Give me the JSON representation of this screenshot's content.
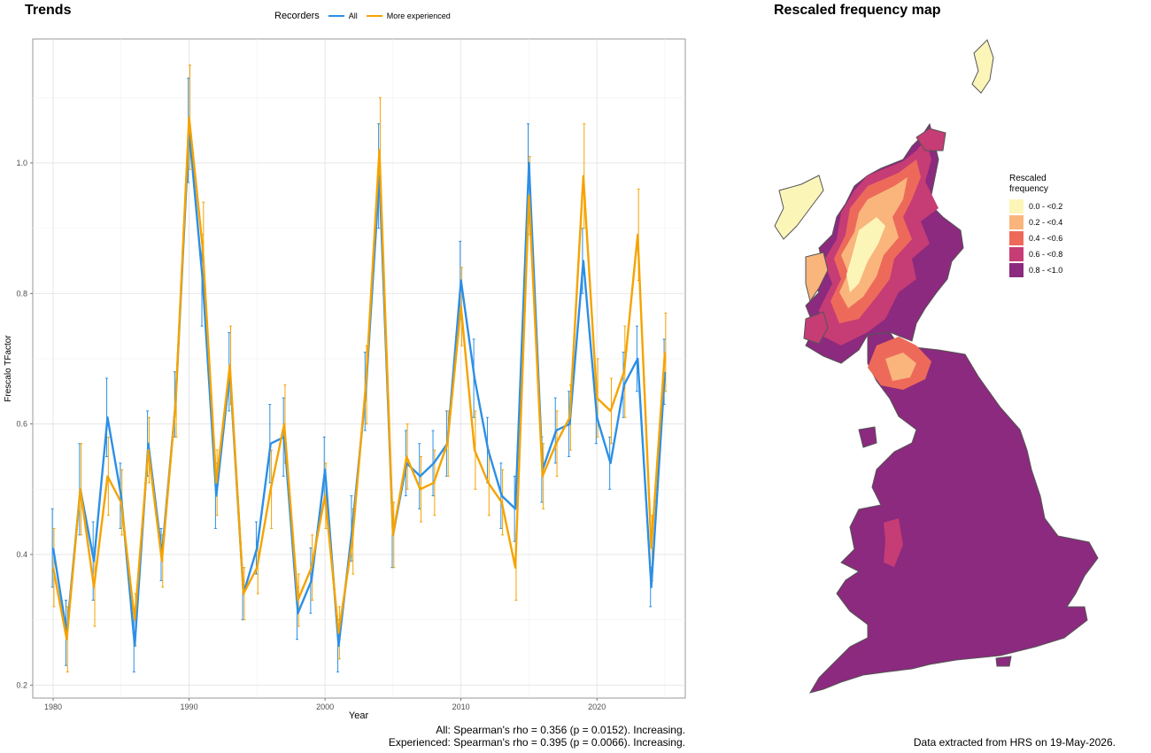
{
  "titles": {
    "trends": "Trends",
    "map": "Rescaled frequency map"
  },
  "legend": {
    "title": "Recorders",
    "items": [
      {
        "name": "All",
        "color": "#2b8fe6"
      },
      {
        "name": "More experienced",
        "color": "#f5a300"
      }
    ]
  },
  "footer": {
    "stats_all": "All: Spearman's rho = 0.356 (p = 0.0152). Increasing.",
    "stats_exp": "Experienced: Spearman's rho = 0.395 (p = 0.0066). Increasing.",
    "extracted": "Data extracted from HRS on 19-May-2026."
  },
  "map_legend": {
    "title_line1": "Rescaled",
    "title_line2": "frequency",
    "classes": [
      {
        "label": "0.0 - <0.2",
        "color": "#fcf5b8"
      },
      {
        "label": "0.2 - <0.4",
        "color": "#f9b57c"
      },
      {
        "label": "0.4 - <0.6",
        "color": "#ed6a5a"
      },
      {
        "label": "0.6 - <0.8",
        "color": "#c63c75"
      },
      {
        "label": "0.8 - <1.0",
        "color": "#8b2a7e"
      }
    ]
  },
  "chart_data": {
    "type": "line",
    "title": "Trends",
    "xlabel": "Year",
    "ylabel": "Frescalo TFactor",
    "xlim": [
      1978.5,
      2026.5
    ],
    "ylim": [
      0.18,
      1.19
    ],
    "xticks": [
      1980,
      1990,
      2000,
      2010,
      2020
    ],
    "yticks": [
      0.2,
      0.4,
      0.6,
      0.8,
      1.0
    ],
    "grid": true,
    "legend_position": "top",
    "x": [
      1980,
      1981,
      1982,
      1983,
      1984,
      1985,
      1986,
      1987,
      1988,
      1989,
      1990,
      1991,
      1992,
      1993,
      1994,
      1995,
      1996,
      1997,
      1998,
      1999,
      2000,
      2001,
      2002,
      2003,
      2004,
      2005,
      2006,
      2007,
      2008,
      2009,
      2010,
      2011,
      2012,
      2013,
      2014,
      2015,
      2016,
      2017,
      2018,
      2019,
      2020,
      2021,
      2022,
      2023,
      2024,
      2025
    ],
    "series": [
      {
        "name": "All",
        "color": "#2b8fe6",
        "values": [
          0.41,
          0.28,
          0.5,
          0.39,
          0.61,
          0.49,
          0.26,
          0.57,
          0.4,
          0.63,
          1.05,
          0.82,
          0.49,
          0.68,
          0.34,
          0.41,
          0.57,
          0.58,
          0.31,
          0.36,
          0.53,
          0.26,
          0.44,
          0.65,
          0.98,
          0.43,
          0.54,
          0.52,
          0.54,
          0.57,
          0.82,
          0.67,
          0.56,
          0.49,
          0.47,
          1.0,
          0.53,
          0.59,
          0.6,
          0.85,
          0.61,
          0.54,
          0.66,
          0.7,
          0.35,
          0.68
        ],
        "err": [
          0.06,
          0.05,
          0.07,
          0.06,
          0.06,
          0.05,
          0.04,
          0.05,
          0.04,
          0.05,
          0.08,
          0.07,
          0.05,
          0.06,
          0.04,
          0.04,
          0.06,
          0.06,
          0.04,
          0.05,
          0.05,
          0.04,
          0.05,
          0.06,
          0.08,
          0.05,
          0.05,
          0.05,
          0.05,
          0.05,
          0.06,
          0.06,
          0.05,
          0.05,
          0.05,
          0.06,
          0.05,
          0.05,
          0.05,
          0.05,
          0.04,
          0.04,
          0.05,
          0.05,
          0.03,
          0.05
        ]
      },
      {
        "name": "More experienced",
        "color": "#f5a300",
        "values": [
          0.38,
          0.27,
          0.5,
          0.35,
          0.52,
          0.48,
          0.3,
          0.56,
          0.39,
          0.63,
          1.07,
          0.87,
          0.51,
          0.69,
          0.34,
          0.38,
          0.5,
          0.6,
          0.33,
          0.38,
          0.49,
          0.28,
          0.42,
          0.66,
          1.02,
          0.43,
          0.55,
          0.5,
          0.51,
          0.57,
          0.78,
          0.56,
          0.51,
          0.48,
          0.38,
          0.95,
          0.52,
          0.57,
          0.61,
          0.98,
          0.64,
          0.62,
          0.68,
          0.89,
          0.41,
          0.71
        ],
        "err": [
          0.06,
          0.05,
          0.07,
          0.06,
          0.06,
          0.05,
          0.04,
          0.05,
          0.04,
          0.05,
          0.08,
          0.07,
          0.05,
          0.06,
          0.04,
          0.04,
          0.06,
          0.06,
          0.04,
          0.05,
          0.05,
          0.04,
          0.05,
          0.06,
          0.08,
          0.05,
          0.05,
          0.05,
          0.05,
          0.05,
          0.06,
          0.06,
          0.05,
          0.05,
          0.05,
          0.06,
          0.05,
          0.05,
          0.05,
          0.08,
          0.06,
          0.05,
          0.07,
          0.07,
          0.05,
          0.06
        ]
      }
    ]
  }
}
